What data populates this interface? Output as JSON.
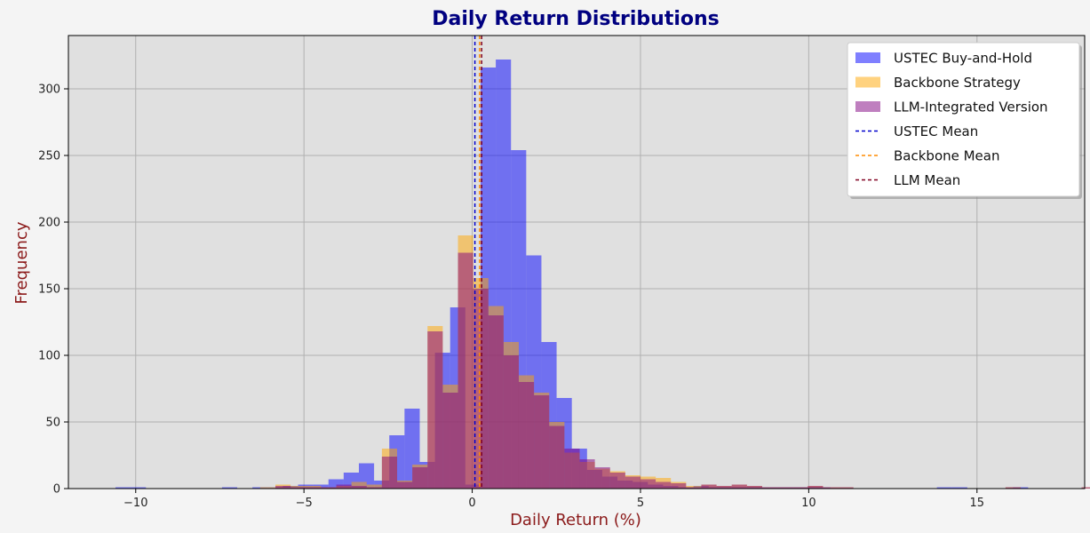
{
  "chart_data": {
    "type": "bar",
    "title": "Daily Return Distributions",
    "xlabel": "Daily Return (%)",
    "ylabel": "Frequency",
    "xlim": [
      -12.0,
      18.2
    ],
    "ylim": [
      0,
      340
    ],
    "xticks": [
      -10,
      -5,
      0,
      5,
      10,
      15
    ],
    "yticks": [
      0,
      50,
      100,
      150,
      200,
      250,
      300
    ],
    "grid": true,
    "legend_position": "top-right",
    "series": [
      {
        "name": "USTEC Buy-and-Hold",
        "kind": "histogram",
        "color": "#0000ff",
        "opacity": 0.5,
        "bin_start": -10.6,
        "bin_width": 0.452,
        "counts": [
          1,
          1,
          0,
          0,
          0,
          0,
          0,
          1,
          0,
          1,
          1,
          2,
          3,
          3,
          7,
          12,
          19,
          6,
          40,
          60,
          20,
          102,
          136,
          3,
          316,
          322,
          254,
          175,
          110,
          68,
          30,
          14,
          9,
          6,
          5,
          3,
          2,
          1,
          2,
          1,
          1,
          1,
          1,
          1,
          1,
          1,
          1,
          0,
          0,
          0,
          0,
          0,
          0,
          0,
          1,
          1,
          0,
          0,
          0,
          1,
          0,
          0,
          0,
          0
        ]
      },
      {
        "name": "Backbone Strategy",
        "kind": "histogram",
        "color": "#ffa500",
        "opacity": 0.5,
        "bin_start": -6.3,
        "bin_width": 0.452,
        "counts": [
          1,
          3,
          2,
          2,
          1,
          2,
          5,
          3,
          30,
          6,
          18,
          122,
          78,
          190,
          158,
          137,
          110,
          85,
          72,
          50,
          27,
          20,
          15,
          13,
          10,
          9,
          8,
          5,
          2,
          3,
          2,
          3,
          2,
          1,
          1,
          1,
          2,
          1,
          1,
          0,
          0,
          0,
          0,
          0,
          0,
          0,
          0,
          0,
          0,
          1,
          0,
          0,
          0,
          0,
          1
        ]
      },
      {
        "name": "LLM-Integrated Version",
        "kind": "histogram",
        "color": "#800080",
        "opacity": 0.5,
        "bin_start": -6.3,
        "bin_width": 0.452,
        "counts": [
          0,
          2,
          1,
          1,
          1,
          3,
          2,
          1,
          24,
          5,
          16,
          118,
          72,
          177,
          150,
          130,
          100,
          80,
          70,
          47,
          30,
          22,
          16,
          12,
          9,
          7,
          5,
          4,
          1,
          3,
          2,
          3,
          2,
          1,
          1,
          1,
          2,
          1,
          1,
          0,
          0,
          0,
          0,
          0,
          0,
          0,
          0,
          0,
          0,
          1,
          0,
          0,
          0,
          0,
          1
        ]
      },
      {
        "name": "USTEC Mean",
        "kind": "mean-line",
        "color": "#0000cc",
        "value": 0.08
      },
      {
        "name": "Backbone Mean",
        "kind": "mean-line",
        "color": "#ff8c00",
        "value": 0.22
      },
      {
        "name": "LLM Mean",
        "kind": "mean-line",
        "color": "#800020",
        "value": 0.28
      }
    ]
  }
}
